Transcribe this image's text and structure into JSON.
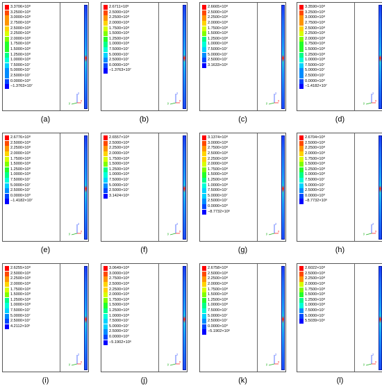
{
  "legend_colors": [
    "#ff0000",
    "#ff4a00",
    "#ff9500",
    "#ffd400",
    "#d8ff00",
    "#7fff00",
    "#23ff2a",
    "#00ff88",
    "#00ffd8",
    "#00d2ff",
    "#008cff",
    "#0046ff",
    "#0000ff"
  ],
  "panels": [
    {
      "caption": "(a)",
      "values": [
        "3.3706×10⁸",
        "3.2500×10⁸",
        "3.0000×10⁸",
        "2.7500×10⁸",
        "2.5000×10⁸",
        "2.2500×10⁸",
        "2.0000×10⁸",
        "1.7500×10⁸",
        "1.5000×10⁸",
        "1.2500×10⁸",
        "1.0000×10⁸",
        "7.5000×10⁷",
        "5.0000×10⁷",
        "2.5000×10⁷",
        "0.0000×10⁰",
        "−1.3763×10⁷"
      ]
    },
    {
      "caption": "(b)",
      "values": [
        "2.6711×10⁸",
        "2.5000×10⁸",
        "2.2500×10⁸",
        "2.0000×10⁸",
        "1.7500×10⁸",
        "1.5000×10⁸",
        "1.2500×10⁸",
        "1.0000×10⁸",
        "7.5000×10⁷",
        "5.0000×10⁷",
        "2.5000×10⁷",
        "0.0000×10⁰",
        "−1.3763×10⁷"
      ]
    },
    {
      "caption": "(c)",
      "values": [
        "2.6665×10⁸",
        "2.5000×10⁸",
        "2.2500×10⁸",
        "2.0000×10⁸",
        "1.7500×10⁸",
        "1.5000×10⁸",
        "1.2500×10⁸",
        "1.0000×10⁸",
        "7.5000×10⁷",
        "5.0000×10⁷",
        "2.5000×10⁷",
        "3.1633×10⁶"
      ]
    },
    {
      "caption": "(d)",
      "values": [
        "3.3590×10⁸",
        "3.2500×10⁸",
        "3.0000×10⁸",
        "2.7500×10⁸",
        "2.5000×10⁸",
        "2.2500×10⁸",
        "2.0000×10⁸",
        "1.7500×10⁸",
        "1.5000×10⁸",
        "1.2500×10⁸",
        "1.0000×10⁸",
        "7.5000×10⁷",
        "5.0000×10⁷",
        "2.5000×10⁷",
        "0.0000×10⁰",
        "−1.4182×10⁷"
      ]
    },
    {
      "caption": "(e)",
      "values": [
        "2.6776×10⁸",
        "2.5000×10⁸",
        "2.2500×10⁸",
        "2.0000×10⁸",
        "1.7500×10⁸",
        "1.5000×10⁸",
        "1.2500×10⁸",
        "1.0000×10⁸",
        "7.5000×10⁷",
        "5.0000×10⁷",
        "2.5000×10⁷",
        "0.0000×10⁰",
        "−1.4182×10⁷"
      ]
    },
    {
      "caption": "(f)",
      "values": [
        "2.6557×10⁸",
        "2.5000×10⁸",
        "2.2500×10⁸",
        "2.0000×10⁸",
        "1.7500×10⁸",
        "1.5000×10⁸",
        "1.2500×10⁸",
        "1.0000×10⁸",
        "7.5000×10⁷",
        "5.0000×10⁷",
        "2.5000×10⁷",
        "3.1424×10⁶"
      ]
    },
    {
      "caption": "(g)",
      "values": [
        "3.1374×10⁸",
        "3.0000×10⁸",
        "2.7500×10⁸",
        "2.5000×10⁸",
        "2.2500×10⁸",
        "2.0000×10⁸",
        "1.7500×10⁸",
        "1.5000×10⁸",
        "1.2500×10⁸",
        "1.0000×10⁸",
        "7.5000×10⁷",
        "5.0000×10⁷",
        "2.5000×10⁷",
        "0.0000×10⁰",
        "−8.7732×10⁶"
      ]
    },
    {
      "caption": "(h)",
      "values": [
        "2.6704×10⁸",
        "2.5000×10⁸",
        "2.2500×10⁸",
        "2.0000×10⁸",
        "1.7500×10⁸",
        "1.5000×10⁸",
        "1.2500×10⁸",
        "1.0000×10⁸",
        "7.5000×10⁷",
        "5.0000×10⁷",
        "2.5000×10⁷",
        "0.0000×10⁰",
        "−8.7732×10⁶"
      ]
    },
    {
      "caption": "(i)",
      "values": [
        "2.6255×10⁸",
        "2.5000×10⁸",
        "2.2500×10⁸",
        "2.0000×10⁸",
        "1.7500×10⁸",
        "1.5000×10⁸",
        "1.2500×10⁸",
        "1.0000×10⁸",
        "7.5000×10⁷",
        "5.0000×10⁷",
        "2.5000×10⁷",
        "4.2112×10⁶"
      ]
    },
    {
      "caption": "(j)",
      "values": [
        "3.0649×10⁸",
        "3.0000×10⁸",
        "2.7500×10⁸",
        "2.5000×10⁸",
        "2.2500×10⁸",
        "2.0000×10⁸",
        "1.7500×10⁸",
        "1.5000×10⁸",
        "1.2500×10⁸",
        "1.0000×10⁸",
        "7.5000×10⁷",
        "5.0000×10⁷",
        "2.5000×10⁷",
        "0.0000×10⁰",
        "−5.1902×10⁶"
      ]
    },
    {
      "caption": "(k)",
      "values": [
        "2.6758×10⁸",
        "2.5000×10⁸",
        "2.2500×10⁸",
        "2.0000×10⁸",
        "1.7500×10⁸",
        "1.5000×10⁸",
        "1.2500×10⁸",
        "1.0000×10⁸",
        "7.5000×10⁷",
        "5.0000×10⁷",
        "2.5000×10⁷",
        "0.0000×10⁰",
        "−5.1902×10⁶"
      ]
    },
    {
      "caption": "(l)",
      "values": [
        "2.6022×10⁸",
        "2.5000×10⁸",
        "2.2500×10⁸",
        "2.0000×10⁸",
        "1.7500×10⁸",
        "1.5000×10⁸",
        "1.2500×10⁸",
        "1.0000×10⁸",
        "7.5000×10⁷",
        "5.0000×10⁷",
        "5.5039×10⁶"
      ]
    }
  ]
}
